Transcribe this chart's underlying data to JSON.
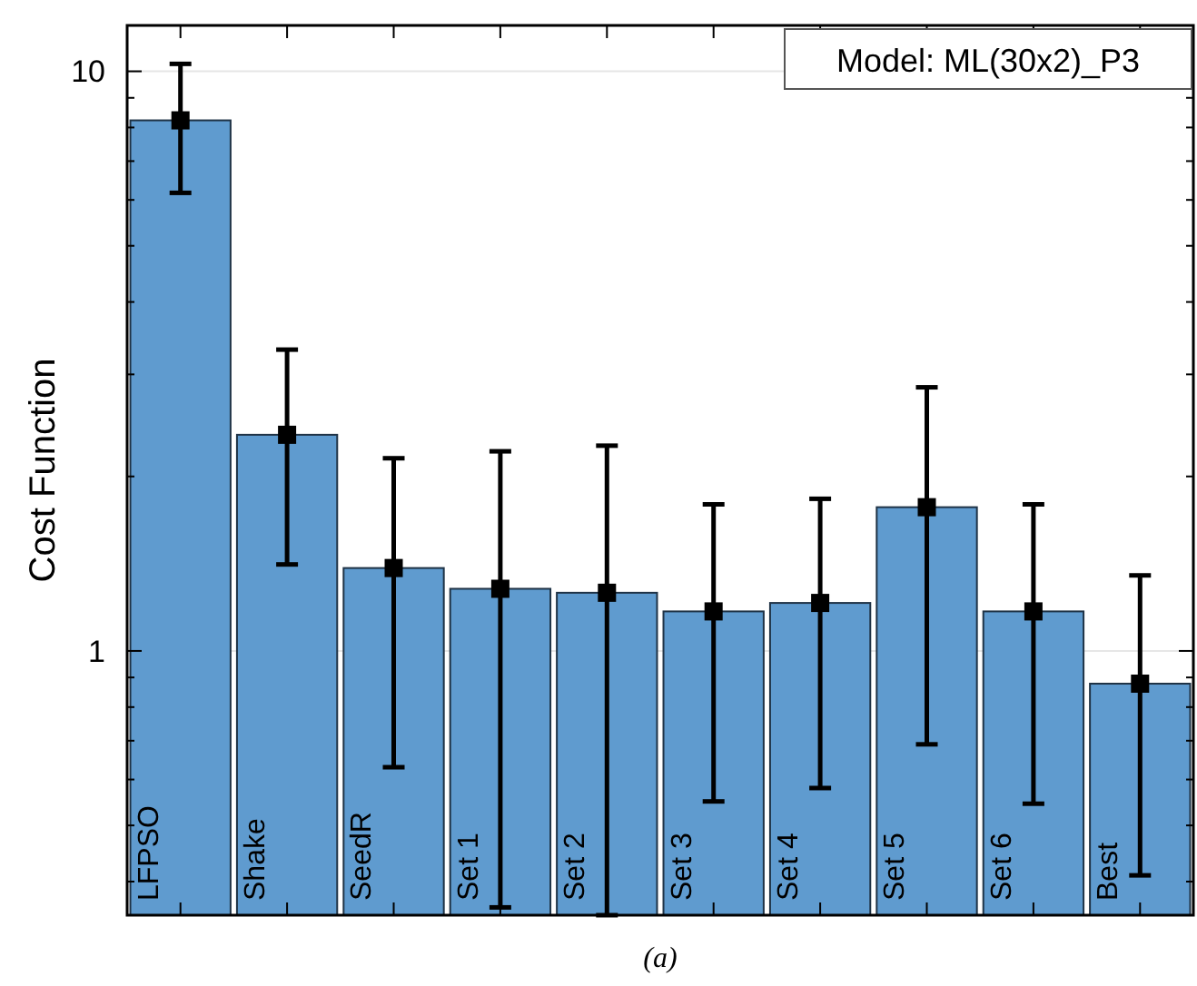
{
  "chart_data": {
    "type": "bar",
    "ylabel": "Cost Function",
    "categories": [
      "LFPSO",
      "Shake",
      "SeedR",
      "Set 1",
      "Set 2",
      "Set 3",
      "Set 4",
      "Set 5",
      "Set 6",
      "Best"
    ],
    "series": [
      {
        "color": "#5f9bcf",
        "values": [
          8.23,
          2.36,
          1.39,
          1.28,
          1.26,
          1.17,
          1.21,
          1.77,
          1.17,
          0.878
        ],
        "errors": [
          [
            6.17,
            10.3
          ],
          [
            1.41,
            3.31
          ],
          [
            0.63,
            2.15
          ],
          [
            0.361,
            2.21
          ],
          [
            0.35,
            2.26
          ],
          [
            0.55,
            1.79
          ],
          [
            0.58,
            1.83
          ],
          [
            0.69,
            2.85
          ],
          [
            0.545,
            1.79
          ],
          [
            0.41,
            1.35
          ]
        ]
      },
      {
        "type": "scatter",
        "color": "#000000",
        "marker": "square",
        "x": [
          "LFPSO",
          "Shake",
          "SeedR",
          "Set 1",
          "Set 2",
          "Set 3",
          "Set 4",
          "Set 5",
          "Set 6",
          "Best"
        ],
        "values": [
          8.23,
          2.36,
          1.39,
          1.28,
          1.26,
          1.17,
          1.21,
          1.77,
          1.17,
          0.878
        ]
      }
    ],
    "log": true,
    "grid": "y",
    "ylim": [
      0.35,
      12
    ],
    "yticks": [
      {
        "value": 0.4,
        "label": null
      },
      {
        "value": 0.5,
        "label": null
      },
      {
        "value": 0.6,
        "label": null
      },
      {
        "value": 0.7,
        "label": null
      },
      {
        "value": 0.8,
        "label": null
      },
      {
        "value": 0.9,
        "label": null
      },
      1,
      {
        "value": 2,
        "label": null
      },
      {
        "value": 3,
        "label": null
      },
      {
        "value": 4,
        "label": null
      },
      {
        "value": 5,
        "label": null
      },
      {
        "value": 6,
        "label": null
      },
      {
        "value": 7,
        "label": null
      },
      {
        "value": 8,
        "label": null
      },
      {
        "value": 9,
        "label": null
      },
      10
    ],
    "annotations": [
      "Model: ML(30x2)_P3",
      "(a)"
    ]
  }
}
